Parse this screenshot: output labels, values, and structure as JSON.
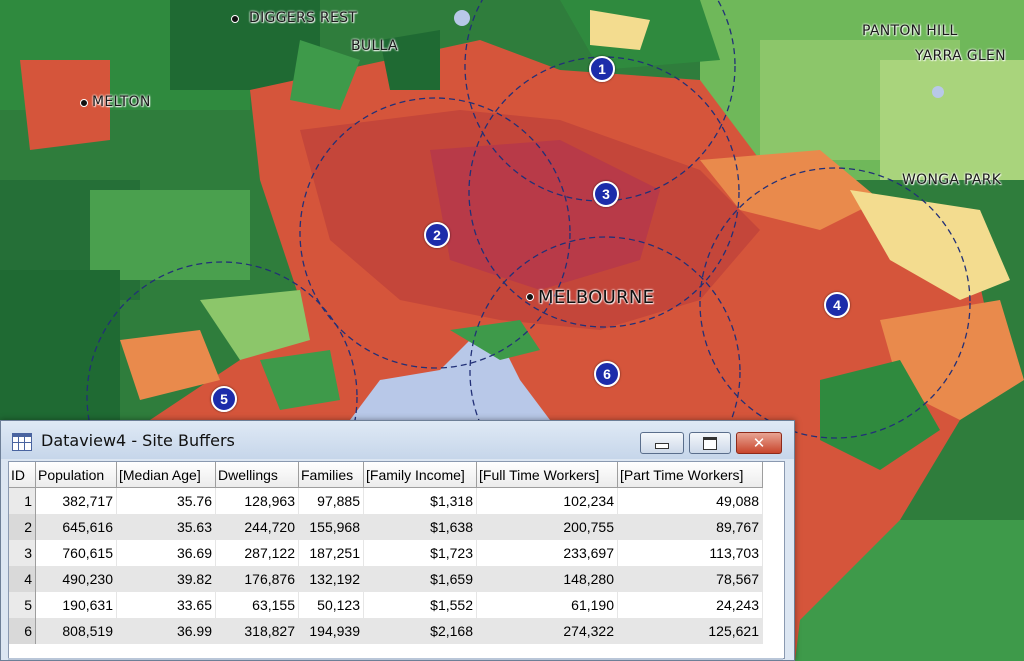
{
  "map": {
    "places": [
      {
        "label": "DIGGERS REST"
      },
      {
        "label": "BULLA"
      },
      {
        "label": "MELTON"
      },
      {
        "label": "PANTON HILL"
      },
      {
        "label": "YARRA GLEN"
      },
      {
        "label": "WONGA PARK"
      },
      {
        "label": "MELBOURNE"
      }
    ],
    "sites": [
      "1",
      "2",
      "3",
      "4",
      "5",
      "6"
    ]
  },
  "window": {
    "title": "Dataview4 - Site Buffers",
    "minimize_icon": "minimize-icon",
    "maximize_icon": "maximize-icon",
    "close_icon": "close-icon",
    "close_glyph": "✕"
  },
  "table": {
    "columns": [
      "ID",
      "Population",
      "[Median Age]",
      "Dwellings",
      "Families",
      "[Family Income]",
      "[Full Time Workers]",
      "[Part Time Workers]"
    ],
    "rows": [
      {
        "id": "1",
        "population": "382,717",
        "median_age": "35.76",
        "dwellings": "128,963",
        "families": "97,885",
        "family_income": "$1,318",
        "full_time": "102,234",
        "part_time": "49,088"
      },
      {
        "id": "2",
        "population": "645,616",
        "median_age": "35.63",
        "dwellings": "244,720",
        "families": "155,968",
        "family_income": "$1,638",
        "full_time": "200,755",
        "part_time": "89,767"
      },
      {
        "id": "3",
        "population": "760,615",
        "median_age": "36.69",
        "dwellings": "287,122",
        "families": "187,251",
        "family_income": "$1,723",
        "full_time": "233,697",
        "part_time": "113,703"
      },
      {
        "id": "4",
        "population": "490,230",
        "median_age": "39.82",
        "dwellings": "176,876",
        "families": "132,192",
        "family_income": "$1,659",
        "full_time": "148,280",
        "part_time": "78,567"
      },
      {
        "id": "5",
        "population": "190,631",
        "median_age": "33.65",
        "dwellings": "63,155",
        "families": "50,123",
        "family_income": "$1,552",
        "full_time": "61,190",
        "part_time": "24,243"
      },
      {
        "id": "6",
        "population": "808,519",
        "median_age": "36.99",
        "dwellings": "318,827",
        "families": "194,939",
        "family_income": "$2,168",
        "full_time": "274,322",
        "part_time": "125,621"
      }
    ]
  },
  "colors": {
    "urban_red": "#d5553b",
    "urban_orange": "#e98a4c",
    "green_dark": "#1f6a33",
    "green_mid": "#3e9a4a",
    "green_light": "#8cc66a",
    "pale_yellow": "#f3dc8f",
    "water": "#b8c8e8",
    "site_marker": "#1c2caa"
  }
}
